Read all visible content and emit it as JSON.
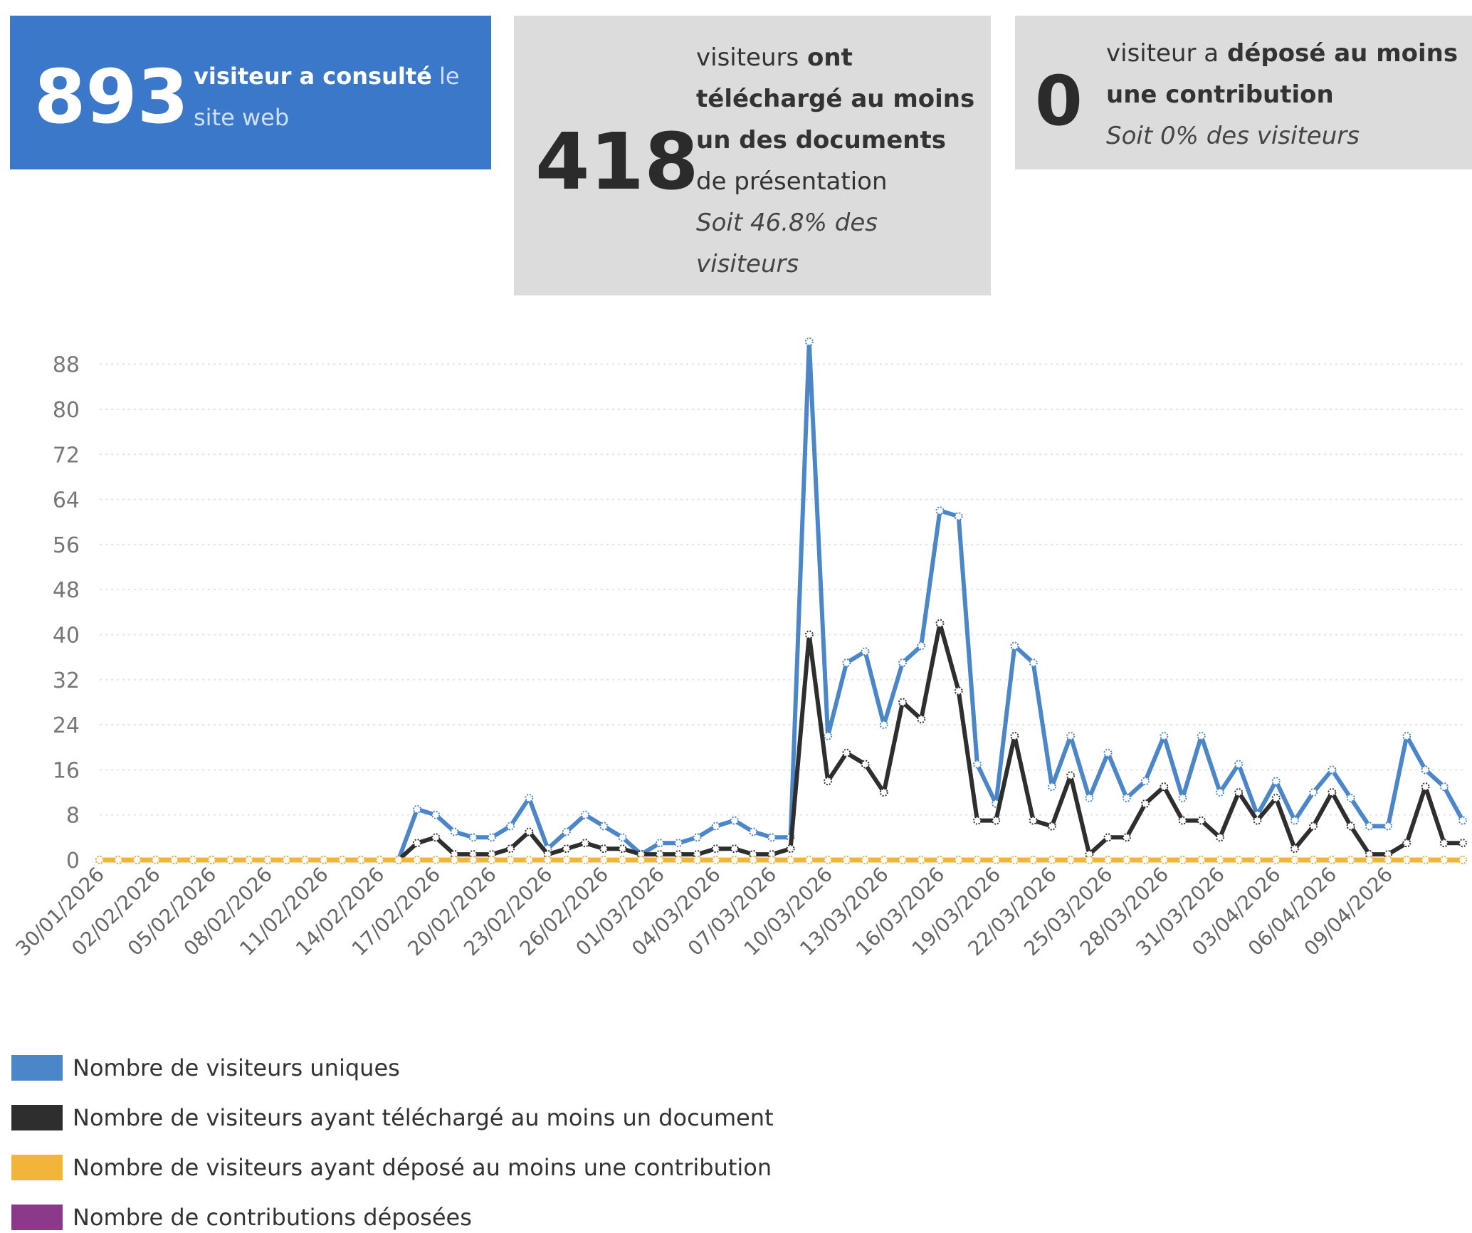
{
  "cards": {
    "visitors": {
      "number": "893",
      "text_bold": "visiteur a consulté",
      "text_light_1": " le",
      "text_light_2": "site web"
    },
    "downloads": {
      "number": "418",
      "text_1": "visiteurs",
      "text_bold_1": " ont",
      "text_bold_2": "téléchargé au moins",
      "text_bold_3": "un des documents",
      "text_2": "de présentation",
      "percent_1": "Soit 46.8% des",
      "percent_2": "visiteurs"
    },
    "contributions": {
      "number": "0",
      "text_1": "visiteur a",
      "text_bold_1": " déposé au moins",
      "text_bold_2": "une contribution",
      "percent": "Soit 0% des visiteurs"
    }
  },
  "colors": {
    "unique": "#4a86c8",
    "downloaded": "#2e2e2e",
    "contributed": "#f2b53a",
    "contributions": "#8b3a8b",
    "card_blue": "#3b78c9",
    "card_grey": "#dcdcdc"
  },
  "chart_data": {
    "type": "line",
    "y_ticks": [
      "0",
      "8",
      "16",
      "24",
      "32",
      "40",
      "48",
      "56",
      "64",
      "72",
      "80",
      "88"
    ],
    "ylim": [
      0,
      92
    ],
    "x_tick_labels": [
      "30/01/2026",
      "02/02/2026",
      "05/02/2026",
      "08/02/2026",
      "11/02/2026",
      "14/02/2026",
      "17/02/2026",
      "20/02/2026",
      "23/02/2026",
      "26/02/2026",
      "01/03/2026",
      "04/03/2026",
      "07/03/2026",
      "10/03/2026",
      "13/03/2026",
      "16/03/2026",
      "19/03/2026",
      "22/03/2026",
      "25/03/2026",
      "28/03/2026",
      "31/03/2026",
      "03/04/2026",
      "06/04/2026",
      "09/04/2026"
    ],
    "x_start": "30/01/2026",
    "x_end": "10/04/2026",
    "grid": true,
    "legend_position": "bottom-left",
    "series": [
      {
        "name": "Nombre de visiteurs uniques",
        "color": "#4a86c8",
        "values": [
          0,
          0,
          0,
          0,
          0,
          0,
          0,
          0,
          0,
          0,
          0,
          0,
          0,
          0,
          0,
          0,
          0,
          9,
          8,
          5,
          4,
          4,
          6,
          11,
          2,
          5,
          8,
          6,
          4,
          1,
          3,
          3,
          4,
          6,
          7,
          5,
          4,
          4,
          92,
          22,
          35,
          37,
          24,
          35,
          38,
          62,
          61,
          17,
          10,
          38,
          35,
          13,
          22,
          11,
          19,
          11,
          14,
          22,
          11,
          22,
          12,
          17,
          8,
          14,
          7,
          12,
          16,
          11,
          6,
          6,
          22,
          16,
          13,
          7
        ],
        "comment": ""
      },
      {
        "name": "Nombre de visiteurs ayant téléchargé au moins un document",
        "color": "#2e2e2e",
        "values": [
          0,
          0,
          0,
          0,
          0,
          0,
          0,
          0,
          0,
          0,
          0,
          0,
          0,
          0,
          0,
          0,
          0,
          3,
          4,
          1,
          1,
          1,
          2,
          5,
          1,
          2,
          3,
          2,
          2,
          1,
          1,
          1,
          1,
          2,
          2,
          1,
          1,
          2,
          40,
          14,
          19,
          17,
          12,
          28,
          25,
          42,
          30,
          7,
          7,
          22,
          7,
          6,
          15,
          1,
          4,
          4,
          10,
          13,
          7,
          7,
          4,
          12,
          7,
          11,
          2,
          6,
          12,
          6,
          1,
          1,
          3,
          13,
          3,
          3
        ]
      },
      {
        "name": "Nombre de visiteurs ayant déposé au moins une contribution",
        "color": "#f2b53a",
        "values": [
          0,
          0,
          0,
          0,
          0,
          0,
          0,
          0,
          0,
          0,
          0,
          0,
          0,
          0,
          0,
          0,
          0,
          0,
          0,
          0,
          0,
          0,
          0,
          0,
          0,
          0,
          0,
          0,
          0,
          0,
          0,
          0,
          0,
          0,
          0,
          0,
          0,
          0,
          0,
          0,
          0,
          0,
          0,
          0,
          0,
          0,
          0,
          0,
          0,
          0,
          0,
          0,
          0,
          0,
          0,
          0,
          0,
          0,
          0,
          0,
          0,
          0,
          0,
          0,
          0,
          0,
          0,
          0,
          0,
          0,
          0,
          0,
          0,
          0
        ]
      },
      {
        "name": "Nombre de contributions déposées",
        "color": "#8b3a8b",
        "values": [
          0,
          0,
          0,
          0,
          0,
          0,
          0,
          0,
          0,
          0,
          0,
          0,
          0,
          0,
          0,
          0,
          0,
          0,
          0,
          0,
          0,
          0,
          0,
          0,
          0,
          0,
          0,
          0,
          0,
          0,
          0,
          0,
          0,
          0,
          0,
          0,
          0,
          0,
          0,
          0,
          0,
          0,
          0,
          0,
          0,
          0,
          0,
          0,
          0,
          0,
          0,
          0,
          0,
          0,
          0,
          0,
          0,
          0,
          0,
          0,
          0,
          0,
          0,
          0,
          0,
          0,
          0,
          0,
          0,
          0,
          0,
          0,
          0,
          0
        ]
      }
    ]
  },
  "legend": [
    {
      "label": "Nombre de visiteurs uniques",
      "color": "#4a86c8"
    },
    {
      "label": "Nombre de visiteurs ayant téléchargé au moins un document",
      "color": "#2e2e2e"
    },
    {
      "label": "Nombre de visiteurs ayant déposé au moins une contribution",
      "color": "#f2b53a"
    },
    {
      "label": "Nombre de contributions déposées",
      "color": "#8b3a8b"
    }
  ]
}
